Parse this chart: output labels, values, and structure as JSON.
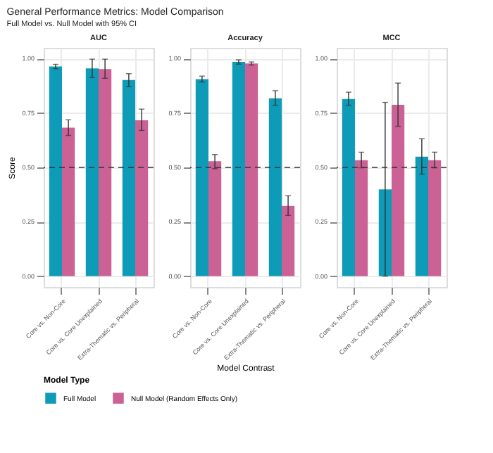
{
  "chart_data": [
    {
      "type": "bar",
      "title": "AUC",
      "ylabel": "Score",
      "annotations": [
        "General Performance Metrics: Model Comparison",
        "Full Model vs. Null Model with 95% CI"
      ],
      "categories": [
        "Core vs. Non-Core",
        "Core vs. Core Unexplained",
        "Extra-Thematic vs. Peripheral"
      ],
      "series": [
        {
          "name": "Full Model",
          "color": "#0e9bb8",
          "values": [
            0.964,
            0.955,
            0.902
          ],
          "errors": [
            [
              0.954,
              0.974
            ],
            [
              0.913,
              0.998
            ],
            [
              0.872,
              0.931
            ]
          ]
        },
        {
          "name": "Null Model (Random Effects Only)",
          "color": "#cb6195",
          "values": [
            0.683,
            0.952,
            0.717
          ],
          "errors": [
            [
              0.647,
              0.719
            ],
            [
              0.91,
              0.998
            ],
            [
              0.67,
              0.768
            ]
          ]
        }
      ],
      "ylim": [
        -0.05,
        1.05
      ],
      "yticks": [
        {
          "value": 0,
          "label": "0.00"
        },
        {
          "value": 0.25,
          "label": "0.25"
        },
        {
          "value": 0.5,
          "label": "0.50"
        },
        {
          "value": 0.75,
          "label": "0.75"
        },
        {
          "value": 1,
          "label": "1.00"
        }
      ],
      "grid": true,
      "legend": "bottom",
      "ref_lines": [
        {
          "axis": "y",
          "value": 0.5,
          "line_style": "dashed",
          "color": "#333333"
        }
      ]
    },
    {
      "type": "bar",
      "title": "Accuracy",
      "xlabel": "Model Contrast",
      "legend_title": "Model Type",
      "categories": [
        "Core vs. Non-Core",
        "Core vs. Core Unexplained",
        "Extra-Thematic vs. Peripheral"
      ],
      "series": [
        {
          "name": "Full Model",
          "color": "#0e9bb8",
          "values": [
            0.906,
            0.985,
            0.818
          ],
          "errors": [
            [
              0.893,
              0.92
            ],
            [
              0.975,
              0.995
            ],
            [
              0.786,
              0.853
            ]
          ]
        },
        {
          "name": "Null Model (Random Effects Only)",
          "color": "#cb6195",
          "values": [
            0.528,
            0.978,
            0.323
          ],
          "errors": [
            [
              0.494,
              0.559
            ],
            [
              0.971,
              0.985
            ],
            [
              0.279,
              0.37
            ]
          ]
        }
      ],
      "ylim": [
        -0.05,
        1.05
      ],
      "yticks": [
        {
          "value": 0,
          "label": "0.00"
        },
        {
          "value": 0.25,
          "label": "0.25"
        },
        {
          "value": 0.5,
          "label": "0.50"
        },
        {
          "value": 0.75,
          "label": "0.75"
        },
        {
          "value": 1,
          "label": "1.00"
        }
      ],
      "grid": true,
      "legend": "bottom",
      "ref_lines": [
        {
          "axis": "y",
          "value": 0.5,
          "line_style": "dashed",
          "color": "#333333"
        }
      ]
    },
    {
      "type": "bar",
      "title": "MCC",
      "categories": [
        "Core vs. Non-Core",
        "Core vs. Core Unexplained",
        "Extra-Thematic vs. Peripheral"
      ],
      "series": [
        {
          "name": "Full Model",
          "color": "#0e9bb8",
          "values": [
            0.815,
            0.399,
            0.549
          ],
          "errors": [
            [
              0.786,
              0.846
            ],
            [
              0.0,
              0.799
            ],
            [
              0.469,
              0.632
            ]
          ]
        },
        {
          "name": "Null Model (Random Effects Only)",
          "color": "#cb6195",
          "values": [
            0.533,
            0.788,
            0.533
          ],
          "errors": [
            [
              0.498,
              0.57
            ],
            [
              0.689,
              0.888
            ],
            [
              0.498,
              0.57
            ]
          ]
        }
      ],
      "ylim": [
        -0.05,
        1.05
      ],
      "yticks": [
        {
          "value": 0,
          "label": "0.00"
        },
        {
          "value": 0.25,
          "label": "0.25"
        },
        {
          "value": 0.5,
          "label": "0.50"
        },
        {
          "value": 0.75,
          "label": "0.75"
        },
        {
          "value": 1,
          "label": "1.00"
        }
      ],
      "grid": true,
      "legend": "bottom",
      "ref_lines": [
        {
          "axis": "y",
          "value": 0.5,
          "line_style": "dashed",
          "color": "#333333"
        }
      ]
    }
  ]
}
